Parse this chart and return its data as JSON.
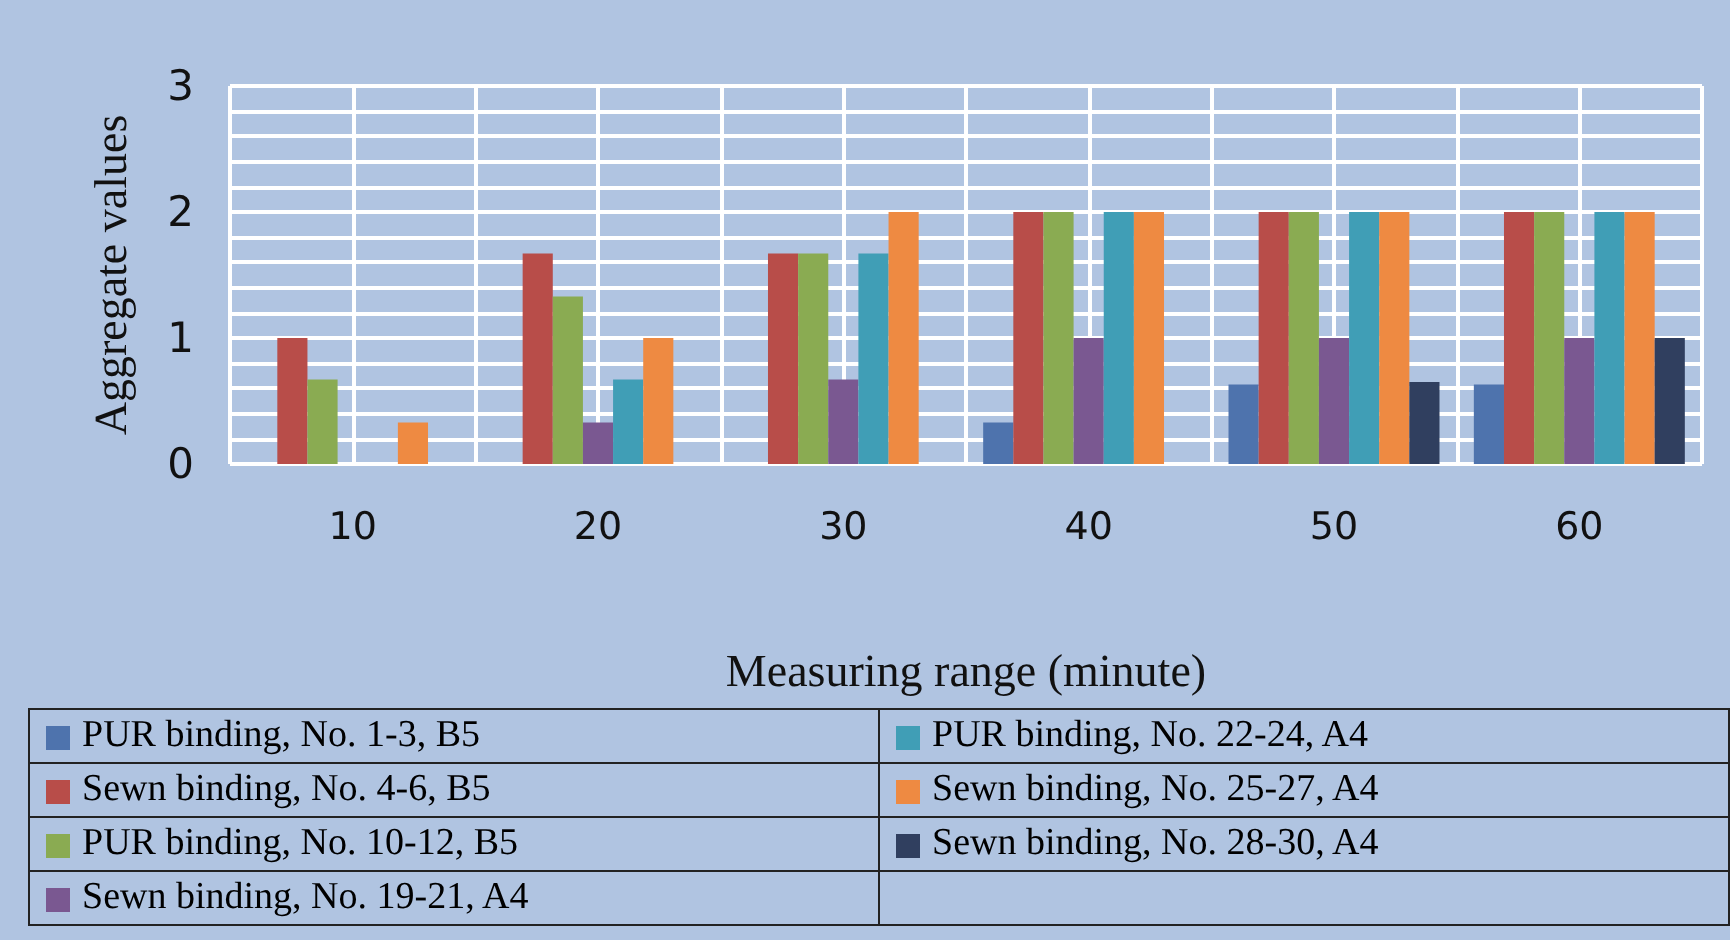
{
  "chart_data": {
    "type": "bar",
    "xlabel": "Measuring range (minute)",
    "ylabel": "Aggregate values",
    "categories": [
      "10",
      "20",
      "30",
      "40",
      "50",
      "60"
    ],
    "series": [
      {
        "name": "PUR binding, No. 1-3, B5",
        "color": "#4e73ad",
        "values": [
          0,
          0,
          0,
          0.33,
          0.63,
          0.63
        ]
      },
      {
        "name": "Sewn binding, No. 4-6, B5",
        "color": "#b84d49",
        "values": [
          1,
          1.67,
          1.67,
          2,
          2,
          2
        ]
      },
      {
        "name": "PUR binding, No. 10-12, B5",
        "color": "#8aab52",
        "values": [
          0.67,
          1.33,
          1.67,
          2,
          2,
          2
        ]
      },
      {
        "name": "Sewn binding, No. 19-21, A4",
        "color": "#7a5891",
        "values": [
          0,
          0.33,
          0.67,
          1,
          1,
          1
        ]
      },
      {
        "name": "PUR binding, No. 22-24, A4",
        "color": "#409eb6",
        "values": [
          0,
          0.67,
          1.67,
          2,
          2,
          2
        ]
      },
      {
        "name": "Sewn binding, No. 25-27, A4",
        "color": "#ee8a42",
        "values": [
          0.33,
          1,
          2,
          2,
          2,
          2
        ]
      },
      {
        "name": "Sewn binding, No. 28-30, A4",
        "color": "#303f5f",
        "values": [
          0,
          0,
          0,
          0,
          0.65,
          1
        ]
      }
    ],
    "ylim": [
      0,
      3
    ],
    "yticks": [
      0,
      {
        "value": 0.2,
        "label": null
      },
      {
        "value": 0.4,
        "label": null
      },
      {
        "value": 0.6,
        "label": null
      },
      {
        "value": 0.8,
        "label": null
      },
      1,
      {
        "value": 1.2,
        "label": null
      },
      {
        "value": 1.4,
        "label": null
      },
      {
        "value": 1.6,
        "label": null
      },
      {
        "value": 1.8,
        "label": null
      },
      2,
      {
        "value": 2.2,
        "label": null
      },
      {
        "value": 2.4,
        "label": null
      },
      {
        "value": 2.6,
        "label": null
      },
      {
        "value": 2.8,
        "label": null
      },
      3
    ],
    "grid": true,
    "legend": "bottom"
  }
}
